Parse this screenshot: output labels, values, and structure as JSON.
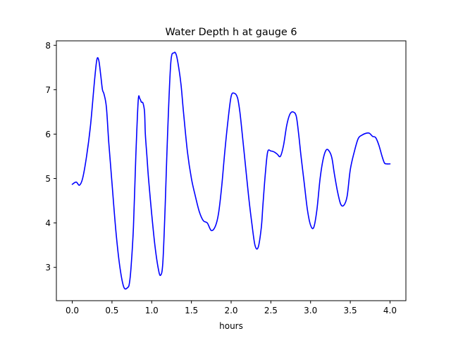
{
  "chart_data": {
    "type": "line",
    "title": "Water Depth h at gauge 6",
    "xlabel": "hours",
    "ylabel": "",
    "xlim": [
      -0.2,
      4.2
    ],
    "ylim": [
      2.25,
      8.1
    ],
    "grid": false,
    "x_ticks": [
      "0.0",
      "0.5",
      "1.0",
      "1.5",
      "2.0",
      "2.5",
      "3.0",
      "3.5",
      "4.0"
    ],
    "y_ticks": [
      "3",
      "4",
      "5",
      "6",
      "7",
      "8"
    ],
    "series": [
      {
        "color": "#0000ff",
        "x": [
          0.0,
          0.05,
          0.09,
          0.13,
          0.18,
          0.23,
          0.28,
          0.31,
          0.335,
          0.36,
          0.38,
          0.4,
          0.43,
          0.46,
          0.5,
          0.55,
          0.6,
          0.65,
          0.7,
          0.72,
          0.74,
          0.77,
          0.8,
          0.83,
          0.85,
          0.87,
          0.89,
          0.91,
          0.92,
          0.94,
          0.96,
          1.0,
          1.04,
          1.08,
          1.11,
          1.14,
          1.17,
          1.2,
          1.24,
          1.28,
          1.31,
          1.34,
          1.37,
          1.4,
          1.45,
          1.5,
          1.55,
          1.6,
          1.65,
          1.7,
          1.75,
          1.8,
          1.84,
          1.88,
          1.92,
          1.96,
          2.0,
          2.04,
          2.08,
          2.11,
          2.14,
          2.18,
          2.22,
          2.26,
          2.3,
          2.34,
          2.38,
          2.4,
          2.43,
          2.46,
          2.5,
          2.54,
          2.58,
          2.62,
          2.66,
          2.7,
          2.74,
          2.78,
          2.82,
          2.85,
          2.88,
          2.92,
          2.96,
          3.0,
          3.04,
          3.08,
          3.12,
          3.16,
          3.2,
          3.24,
          3.27,
          3.3,
          3.34,
          3.38,
          3.42,
          3.46,
          3.5,
          3.55,
          3.6,
          3.65,
          3.7,
          3.74,
          3.78,
          3.82,
          3.86,
          3.9,
          3.93,
          3.96,
          4.0
        ],
        "y": [
          4.87,
          4.92,
          4.85,
          5.0,
          5.5,
          6.2,
          7.2,
          7.68,
          7.65,
          7.3,
          7.0,
          6.9,
          6.6,
          5.8,
          4.9,
          3.8,
          3.0,
          2.55,
          2.55,
          2.65,
          3.0,
          3.9,
          5.5,
          6.75,
          6.8,
          6.72,
          6.7,
          6.5,
          6.0,
          5.5,
          5.0,
          4.2,
          3.5,
          3.0,
          2.82,
          3.1,
          4.4,
          6.0,
          7.6,
          7.83,
          7.78,
          7.5,
          7.1,
          6.5,
          5.6,
          5.0,
          4.6,
          4.25,
          4.05,
          4.0,
          3.83,
          3.92,
          4.2,
          4.8,
          5.6,
          6.3,
          6.85,
          6.92,
          6.82,
          6.5,
          6.0,
          5.3,
          4.6,
          4.0,
          3.5,
          3.45,
          3.9,
          4.4,
          5.1,
          5.6,
          5.62,
          5.6,
          5.55,
          5.5,
          5.75,
          6.2,
          6.45,
          6.5,
          6.4,
          6.0,
          5.5,
          4.9,
          4.3,
          3.95,
          3.9,
          4.3,
          5.0,
          5.45,
          5.65,
          5.6,
          5.45,
          5.1,
          4.7,
          4.42,
          4.4,
          4.6,
          5.2,
          5.6,
          5.9,
          5.98,
          6.02,
          6.02,
          5.95,
          5.92,
          5.75,
          5.5,
          5.35,
          5.33,
          5.33
        ]
      }
    ]
  }
}
